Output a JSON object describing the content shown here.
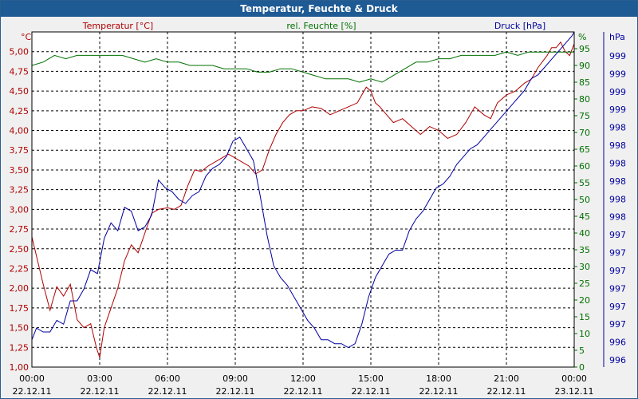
{
  "window": {
    "title": "Temperatur, Feuchte & Druck"
  },
  "chart_data": {
    "type": "line",
    "title": "Temperatur, Feuchte & Druck",
    "grid": true,
    "x_ticks": [
      {
        "time": "00:00",
        "date": "22.12.11"
      },
      {
        "time": "03:00",
        "date": "22.12.11"
      },
      {
        "time": "06:00",
        "date": "22.12.11"
      },
      {
        "time": "09:00",
        "date": "22.12.11"
      },
      {
        "time": "12:00",
        "date": "22.12.11"
      },
      {
        "time": "15:00",
        "date": "22.12.11"
      },
      {
        "time": "18:00",
        "date": "22.12.11"
      },
      {
        "time": "21:00",
        "date": "22.12.11"
      },
      {
        "time": "00:00",
        "date": "23.12.11"
      }
    ],
    "x_hours_range": [
      0,
      24
    ],
    "axes": {
      "temperature": {
        "unit": "°C",
        "header": "Temperatur [°C]",
        "range": [
          1.0,
          5.25
        ],
        "ticks": [
          "1,00",
          "1,25",
          "1,50",
          "1,75",
          "2,00",
          "2,25",
          "2,50",
          "2,75",
          "3,00",
          "3,25",
          "3,50",
          "3,75",
          "4,00",
          "4,25",
          "4,50",
          "4,75",
          "5,00"
        ]
      },
      "humidity": {
        "unit": "%",
        "header": "rel. Feuchte [%]",
        "range": [
          0,
          100
        ],
        "ticks": [
          "0",
          "5",
          "10",
          "15",
          "20",
          "25",
          "30",
          "35",
          "40",
          "45",
          "50",
          "55",
          "60",
          "65",
          "70",
          "75",
          "80",
          "85",
          "90",
          "95"
        ]
      },
      "pressure": {
        "unit": "hPa",
        "header": "Druck [hPa]",
        "range": [
          995.6,
          999.9
        ],
        "ticks": [
          "996",
          "996",
          "997",
          "997",
          "997",
          "997",
          "997",
          "997",
          "998",
          "998",
          "998",
          "998",
          "998",
          "998",
          "999",
          "999",
          "999",
          "999"
        ]
      }
    },
    "colors": {
      "temperature": "#b00000",
      "humidity": "#007000",
      "pressure": "#0000a0",
      "grid": "#000000"
    },
    "series": [
      {
        "name": "Temperatur [°C]",
        "axis": "temperature",
        "x": [
          0,
          0.25,
          0.5,
          0.8,
          1.1,
          1.4,
          1.7,
          2.0,
          2.3,
          2.6,
          2.85,
          3.0,
          3.2,
          3.5,
          3.8,
          4.1,
          4.4,
          4.7,
          5.0,
          5.3,
          5.6,
          6.0,
          6.3,
          6.6,
          6.9,
          7.2,
          7.5,
          7.8,
          8.1,
          8.4,
          8.7,
          9.0,
          9.3,
          9.6,
          9.9,
          10.2,
          10.5,
          10.8,
          11.1,
          11.4,
          11.7,
          12.0,
          12.4,
          12.8,
          13.2,
          13.6,
          14.0,
          14.4,
          14.8,
          15.0,
          15.2,
          15.4,
          15.7,
          16.0,
          16.4,
          16.8,
          17.2,
          17.6,
          18.0,
          18.4,
          18.8,
          19.2,
          19.6,
          20.0,
          20.3,
          20.6,
          21.0,
          21.4,
          21.8,
          22.1,
          22.4,
          22.8,
          23.0,
          23.2,
          23.4,
          23.6,
          23.8,
          24.0
        ],
        "values": [
          2.65,
          2.35,
          2.05,
          1.72,
          2.02,
          1.9,
          2.05,
          1.6,
          1.5,
          1.55,
          1.25,
          1.12,
          1.5,
          1.75,
          2.0,
          2.35,
          2.55,
          2.45,
          2.7,
          2.95,
          3.0,
          3.02,
          3.0,
          3.05,
          3.3,
          3.5,
          3.48,
          3.55,
          3.6,
          3.65,
          3.7,
          3.65,
          3.6,
          3.55,
          3.45,
          3.5,
          3.75,
          3.95,
          4.1,
          4.2,
          4.25,
          4.25,
          4.3,
          4.28,
          4.2,
          4.25,
          4.3,
          4.35,
          4.55,
          4.5,
          4.35,
          4.3,
          4.2,
          4.1,
          4.15,
          4.05,
          3.95,
          4.05,
          4.0,
          3.9,
          3.95,
          4.1,
          4.3,
          4.2,
          4.15,
          4.35,
          4.45,
          4.5,
          4.6,
          4.65,
          4.8,
          4.95,
          5.05,
          5.05,
          5.12,
          5.0,
          4.95,
          5.1
        ]
      },
      {
        "name": "rel. Feuchte [%]",
        "axis": "humidity",
        "x": [
          0,
          0.5,
          1.0,
          1.5,
          2.0,
          2.5,
          3.0,
          3.5,
          4.0,
          4.5,
          5.0,
          5.5,
          6.0,
          6.5,
          7.0,
          7.5,
          8.0,
          8.5,
          9.0,
          9.5,
          10.0,
          10.5,
          11.0,
          11.5,
          12.0,
          12.5,
          13.0,
          13.5,
          14.0,
          14.5,
          15.0,
          15.5,
          16.0,
          16.5,
          17.0,
          17.5,
          18.0,
          18.5,
          19.0,
          19.5,
          20.0,
          20.5,
          21.0,
          21.5,
          22.0,
          22.5,
          23.0,
          23.5,
          24.0
        ],
        "values": [
          90,
          91,
          93,
          92,
          93,
          93,
          93,
          93,
          93,
          92,
          91,
          92,
          91,
          91,
          90,
          90,
          90,
          89,
          89,
          89,
          88,
          88,
          89,
          89,
          88,
          87,
          86,
          86,
          86,
          85,
          86,
          85,
          87,
          89,
          91,
          91,
          92,
          92,
          93,
          93,
          93,
          93,
          94,
          93,
          94,
          94,
          94,
          94,
          94
        ]
      },
      {
        "name": "Druck [hPa]",
        "axis": "pressure",
        "x": [
          0,
          0.2,
          0.5,
          0.8,
          1.1,
          1.4,
          1.7,
          2.0,
          2.3,
          2.6,
          2.9,
          3.2,
          3.5,
          3.8,
          4.1,
          4.4,
          4.7,
          5.0,
          5.3,
          5.6,
          5.9,
          6.2,
          6.5,
          6.8,
          7.1,
          7.4,
          7.7,
          8.0,
          8.3,
          8.6,
          8.9,
          9.2,
          9.5,
          9.8,
          10.1,
          10.4,
          10.7,
          11.0,
          11.3,
          11.6,
          11.9,
          12.2,
          12.5,
          12.8,
          13.1,
          13.4,
          13.7,
          14.0,
          14.3,
          14.6,
          14.9,
          15.2,
          15.5,
          15.8,
          16.1,
          16.4,
          16.7,
          17.0,
          17.3,
          17.6,
          17.9,
          18.2,
          18.5,
          18.8,
          19.1,
          19.4,
          19.7,
          20.0,
          20.3,
          20.6,
          20.9,
          21.2,
          21.5,
          21.8,
          22.1,
          22.4,
          22.7,
          23.0,
          23.3,
          23.6,
          23.9,
          24.0
        ],
        "values": [
          995.95,
          996.1,
          996.05,
          996.05,
          996.2,
          996.15,
          996.45,
          996.45,
          996.6,
          996.85,
          996.8,
          997.25,
          997.45,
          997.35,
          997.65,
          997.6,
          997.35,
          997.4,
          997.55,
          998.0,
          997.9,
          997.85,
          997.75,
          997.7,
          997.8,
          997.85,
          998.05,
          998.15,
          998.2,
          998.3,
          998.5,
          998.55,
          998.4,
          998.25,
          997.8,
          997.3,
          996.9,
          996.75,
          996.65,
          996.5,
          996.35,
          996.2,
          996.1,
          995.95,
          995.95,
          995.9,
          995.9,
          995.85,
          995.9,
          996.15,
          996.5,
          996.75,
          996.9,
          997.05,
          997.1,
          997.1,
          997.35,
          997.5,
          997.6,
          997.75,
          997.9,
          997.95,
          998.05,
          998.2,
          998.3,
          998.4,
          998.45,
          998.55,
          998.65,
          998.75,
          998.85,
          998.95,
          999.05,
          999.15,
          999.3,
          999.35,
          999.45,
          999.55,
          999.65,
          999.75,
          999.85,
          999.9
        ]
      }
    ]
  }
}
